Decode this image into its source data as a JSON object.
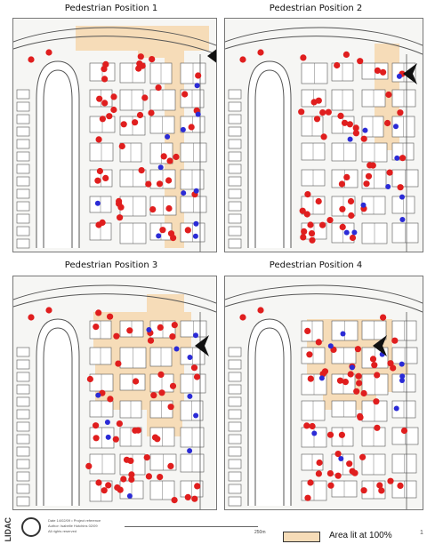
{
  "panels": [
    {
      "title": "Pedestrian Position 1",
      "lit_area": "top"
    },
    {
      "title": "Pedestrian Position 2",
      "lit_area": "right-column"
    },
    {
      "title": "Pedestrian Position 3",
      "lit_area": "center-left"
    },
    {
      "title": "Pedestrian Position 4",
      "lit_area": "center"
    }
  ],
  "footer": {
    "logo": "LIDAC",
    "fine_print": [
      "Date 14/02/09 • Project reference",
      "Author: Isabelle Hutchins 02/09",
      "All rights reserved"
    ],
    "scale_label": "250m",
    "legend_label": "Area lit at 100%",
    "edge_mark": "1"
  },
  "colors": {
    "lamp_red": "#e01e1e",
    "lamp_blue": "#2b2bd6",
    "lit_area": "#f6dcb8",
    "building": "#ffffff",
    "outline": "#555555"
  }
}
